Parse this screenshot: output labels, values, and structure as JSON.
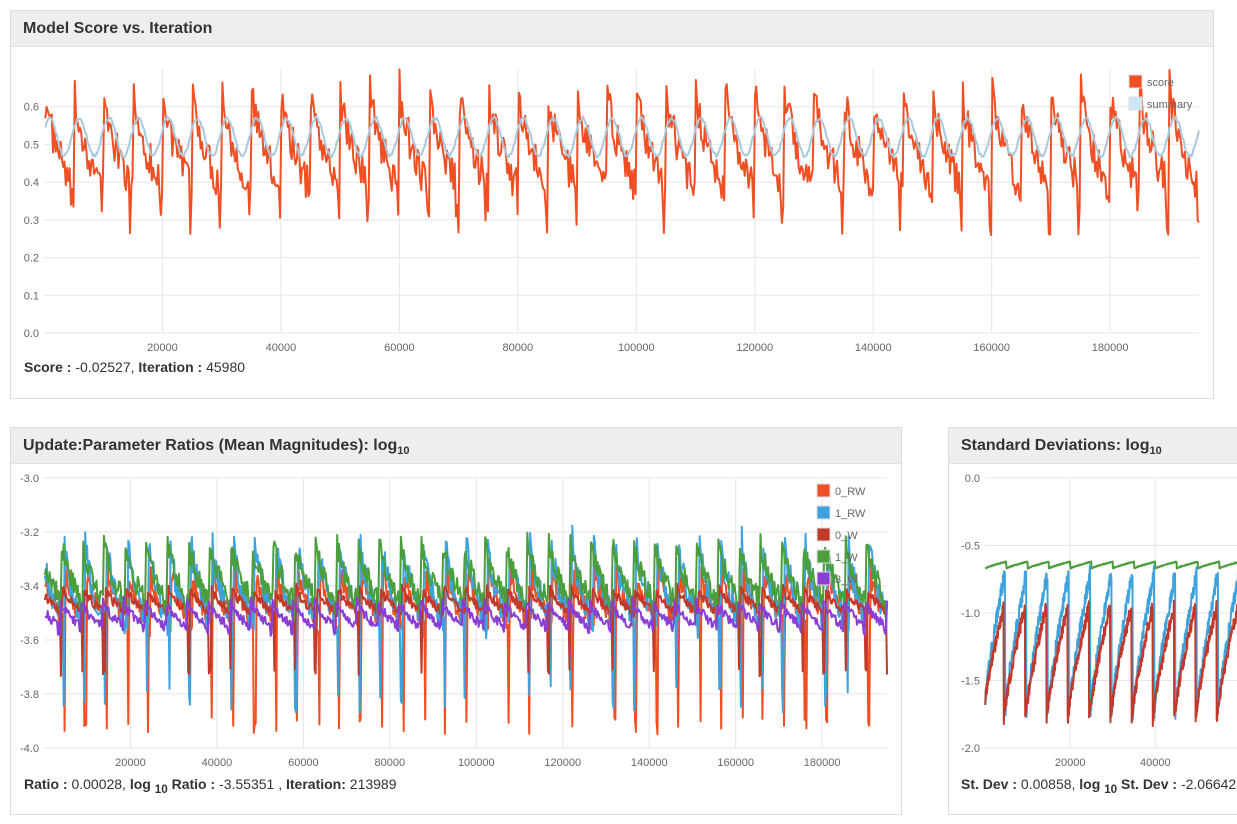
{
  "panels": {
    "score": {
      "title": "Model Score vs. Iteration",
      "readout": {
        "score_label": "Score :",
        "score_value": "-0.02527,",
        "iter_label": "Iteration :",
        "iter_value": "45980"
      }
    },
    "ratios": {
      "title_main": "Update:Parameter Ratios (Mean Magnitudes): log",
      "title_sub": "10",
      "readout": {
        "ratio_label": "Ratio :",
        "ratio_value": "0.00028,",
        "log_label": "log",
        "log_sub": "10",
        "log_label2": "Ratio :",
        "log_value": "-3.55351 ,",
        "iter_label": "Iteration:",
        "iter_value": "213989"
      }
    },
    "stdev": {
      "title_main": "Standard Deviations: log",
      "title_sub": "10",
      "readout": {
        "sd_label": "St. Dev :",
        "sd_value": "0.00858,",
        "log_label": "log",
        "log_sub": "10",
        "log_label2": "St. Dev :",
        "log_value": "-2.06642"
      }
    }
  },
  "chart_data": [
    {
      "type": "line",
      "title": "Model Score vs. Iteration",
      "xlim": [
        0,
        195000
      ],
      "ylim": [
        0,
        0.7
      ],
      "xticks": [
        20000,
        40000,
        60000,
        80000,
        100000,
        120000,
        140000,
        160000,
        180000
      ],
      "yticks": [
        "0.0",
        "0.1",
        "0.2",
        "0.3",
        "0.4",
        "0.5",
        "0.6"
      ],
      "yticks_values": [
        0,
        0.1,
        0.2,
        0.3,
        0.4,
        0.5,
        0.6
      ],
      "series": [
        {
          "name": "score",
          "color": "#f04e23",
          "kind": "sawtooth",
          "cycle": 5000,
          "high": 0.66,
          "low": 0.38,
          "dip": 0.3
        },
        {
          "name": "summary",
          "color": "#a9c8dd",
          "kind": "smooth",
          "cycle": 5000,
          "center": 0.52,
          "amp": 0.05
        }
      ],
      "legend": [
        {
          "label": "score",
          "color": "#f04e23"
        },
        {
          "label": "summary",
          "color": "#cde6f5"
        }
      ],
      "legend_position": "top-right"
    },
    {
      "type": "line",
      "title": "Update:Parameter Ratios (Mean Magnitudes): log10",
      "xlim": [
        0,
        195000
      ],
      "ylim": [
        -4.0,
        -3.0
      ],
      "xticks": [
        20000,
        40000,
        60000,
        80000,
        100000,
        120000,
        140000,
        160000,
        180000
      ],
      "yticks": [
        "-3.0",
        "-3.2",
        "-3.4",
        "-3.6",
        "-3.8",
        "-4.0"
      ],
      "yticks_values": [
        -3.0,
        -3.2,
        -3.4,
        -3.6,
        -3.8,
        -4.0
      ],
      "series": [
        {
          "name": "0_RW",
          "color": "#f04e23",
          "cycle": 4900,
          "high": -3.33,
          "low": -3.55,
          "dip": -3.92
        },
        {
          "name": "1_RW",
          "color": "#3ea3dd",
          "cycle": 4900,
          "high": -3.22,
          "low": -3.55,
          "dip": -3.82
        },
        {
          "name": "0_W",
          "color": "#c0392b",
          "cycle": 4900,
          "high": -3.4,
          "low": -3.5,
          "dip": -3.72
        },
        {
          "name": "1_W",
          "color": "#4a9e3b",
          "cycle": 4900,
          "high": -3.22,
          "low": -3.46,
          "dip": -3.5
        },
        {
          "name": "3_W",
          "color": "#8a3ed6",
          "cycle": 4900,
          "high": -3.45,
          "low": -3.55,
          "dip": -3.57
        }
      ],
      "legend": [
        {
          "label": "0_RW",
          "color": "#f04e23"
        },
        {
          "label": "1_RW",
          "color": "#3ea3dd"
        },
        {
          "label": "0_W",
          "color": "#c0392b"
        },
        {
          "label": "1_W",
          "color": "#4a9e3b"
        },
        {
          "label": "3_W",
          "color": "#8a3ed6"
        }
      ],
      "legend_position": "top-right"
    },
    {
      "type": "line",
      "title": "Standard Deviations: log10",
      "xlim": [
        0,
        62000
      ],
      "ylim": [
        -2.0,
        0.0
      ],
      "xticks": [
        20000,
        40000
      ],
      "xticks_partial": "6",
      "yticks": [
        "0.0",
        "-0.5",
        "-1.0",
        "-1.5",
        "-2.0"
      ],
      "yticks_values": [
        0,
        -0.5,
        -1.0,
        -1.5,
        -2.0
      ],
      "series": [
        {
          "name": "green",
          "color": "#4a9e3b",
          "cycle": 5000,
          "high": -0.62,
          "low": -0.67
        },
        {
          "name": "blue",
          "color": "#3ea3dd",
          "cycle": 5000,
          "high": -0.7,
          "low": -1.75
        },
        {
          "name": "red",
          "color": "#c0392b",
          "cycle": 5000,
          "high": -0.95,
          "low": -1.8
        }
      ]
    }
  ]
}
